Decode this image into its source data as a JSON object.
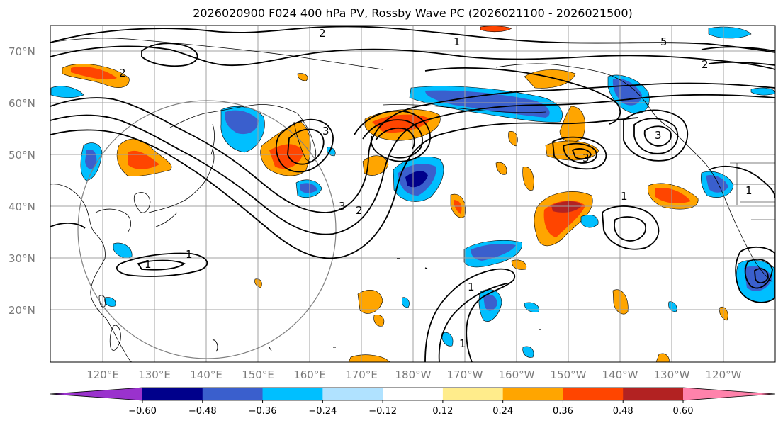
{
  "title": "2026020900 F024 400 hPa PV, Rossby Wave PC (2026021100 - 2026021500)",
  "lat_labels": [
    "70°N",
    "60°N",
    "50°N",
    "40°N",
    "30°N",
    "20°N"
  ],
  "lon_labels": [
    "120°E",
    "130°E",
    "140°E",
    "150°E",
    "160°E",
    "170°E",
    "180°W",
    "170°W",
    "160°W",
    "150°W",
    "140°W",
    "130°W",
    "120°W"
  ],
  "contour_labels": [
    "2",
    "2",
    "1",
    "5",
    "2",
    "3",
    "3",
    "2",
    "1",
    "1",
    "3",
    "3",
    "1",
    "1",
    "1",
    "1"
  ],
  "colorbar": {
    "ticks": [
      "−0.60",
      "−0.48",
      "−0.36",
      "−0.24",
      "−0.12",
      "0.12",
      "0.24",
      "0.36",
      "0.48",
      "0.60"
    ],
    "colors": [
      "#9a32cd",
      "#00008b",
      "#3a5fcd",
      "#00bfff",
      "#b0e2ff",
      "#ffffff",
      "#ffec8b",
      "#ffa500",
      "#ff4500",
      "#b22222",
      "#ff82ab"
    ]
  },
  "colors": {
    "grid": "#a0a0a0",
    "coast": "#000000",
    "contour": "#000000"
  }
}
